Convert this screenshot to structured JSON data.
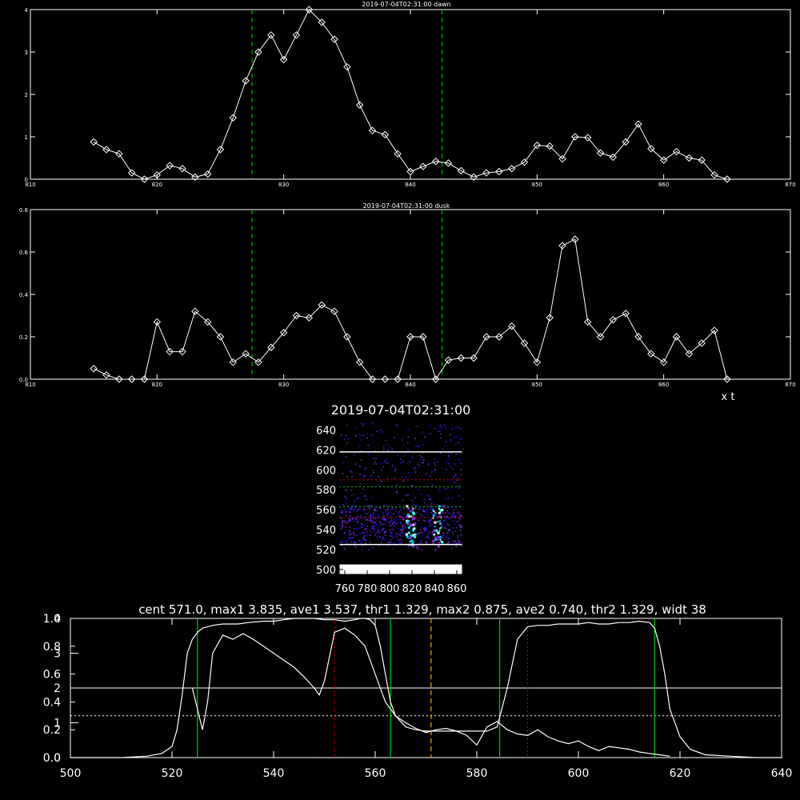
{
  "chart_data": [
    {
      "type": "line",
      "title": "2019-07-04T02:31:00 dawn",
      "xlim": [
        810,
        870
      ],
      "ylim": [
        0,
        4
      ],
      "x_ticks": [
        "810",
        "820",
        "830",
        "840",
        "850",
        "860",
        "870"
      ],
      "y_ticks": [
        "0",
        "1",
        "2",
        "3",
        "4"
      ],
      "markers": "diamond",
      "color": "#ffffff",
      "vlines": {
        "x": [
          827.5,
          842.5
        ],
        "color": "#00cc00",
        "style": "dashed"
      },
      "x": [
        815,
        816,
        817,
        818,
        819,
        820,
        821,
        822,
        823,
        824,
        825,
        826,
        827,
        828,
        829,
        830,
        831,
        832,
        833,
        834,
        835,
        836,
        837,
        838,
        839,
        840,
        841,
        842,
        843,
        844,
        845,
        846,
        847,
        848,
        849,
        850,
        851,
        852,
        853,
        854,
        855,
        856,
        857,
        858,
        859,
        860,
        861,
        862,
        863,
        864,
        865
      ],
      "y": [
        0.88,
        0.7,
        0.6,
        0.15,
        0.0,
        0.1,
        0.32,
        0.25,
        0.05,
        0.12,
        0.7,
        1.45,
        2.32,
        3.0,
        3.4,
        2.82,
        3.4,
        4.0,
        3.7,
        3.3,
        2.65,
        1.75,
        1.15,
        1.05,
        0.6,
        0.18,
        0.3,
        0.42,
        0.38,
        0.2,
        0.05,
        0.15,
        0.18,
        0.25,
        0.4,
        0.8,
        0.78,
        0.48,
        1.0,
        0.98,
        0.62,
        0.52,
        0.88,
        1.3,
        0.72,
        0.45,
        0.65,
        0.5,
        0.45,
        0.1,
        0.0
      ]
    },
    {
      "type": "line",
      "title": "2019-07-04T02:31:00 dusk",
      "xlim": [
        810,
        870
      ],
      "ylim": [
        0,
        0.8
      ],
      "x_ticks": [
        "810",
        "820",
        "830",
        "840",
        "850",
        "860",
        "870"
      ],
      "y_ticks": [
        "0.0",
        "0.2",
        "0.4",
        "0.6",
        "0.8"
      ],
      "axis_note": "x t",
      "markers": "diamond",
      "color": "#ffffff",
      "vlines": {
        "x": [
          827.5,
          842.5
        ],
        "color": "#00cc00",
        "style": "dashed"
      },
      "x": [
        815,
        816,
        817,
        818,
        819,
        820,
        821,
        822,
        823,
        824,
        825,
        826,
        827,
        828,
        829,
        830,
        831,
        832,
        833,
        834,
        835,
        836,
        837,
        838,
        839,
        840,
        841,
        842,
        843,
        844,
        845,
        846,
        847,
        848,
        849,
        850,
        851,
        852,
        853,
        854,
        855,
        856,
        857,
        858,
        859,
        860,
        861,
        862,
        863,
        864,
        865
      ],
      "y": [
        0.05,
        0.02,
        0.0,
        0.0,
        0.0,
        0.27,
        0.13,
        0.13,
        0.32,
        0.27,
        0.2,
        0.08,
        0.12,
        0.08,
        0.15,
        0.22,
        0.3,
        0.29,
        0.35,
        0.32,
        0.2,
        0.08,
        0.0,
        0.0,
        0.0,
        0.2,
        0.2,
        0.0,
        0.09,
        0.1,
        0.1,
        0.2,
        0.2,
        0.25,
        0.17,
        0.08,
        0.29,
        0.63,
        0.66,
        0.27,
        0.2,
        0.28,
        0.31,
        0.2,
        0.12,
        0.08,
        0.2,
        0.12,
        0.17,
        0.23,
        0.0
      ]
    },
    {
      "type": "heatmap",
      "title": "2019-07-04T02:31:00",
      "xlim": [
        755,
        865
      ],
      "ylim": [
        495,
        650
      ],
      "x_ticks": [
        "760",
        "780",
        "800",
        "820",
        "840",
        "860"
      ],
      "y_ticks": [
        "500",
        "520",
        "540",
        "560",
        "580",
        "600",
        "620",
        "640"
      ],
      "hlines_white": [
        525,
        618
      ],
      "hlines_dotted": [
        {
          "y": 563,
          "color": "#00cc00"
        },
        {
          "y": 583,
          "color": "#00cc00"
        },
        {
          "y": 552,
          "color": "#cc0000"
        },
        {
          "y": 590,
          "color": "#cc0000"
        }
      ],
      "bright_columns": [
        818,
        842
      ],
      "colors": [
        "#1010ff",
        "#5a2bd6",
        "#8a2be2",
        "#00c8ff",
        "#30ffd0",
        "#ffffff"
      ]
    },
    {
      "type": "line",
      "title": "cent 571.0, max1 3.835, ave1 3.537, thr1 1.329, max2 0.875, ave2 0.740, thr2 1.329, widt 38",
      "xlim": [
        500,
        640
      ],
      "ylim_left_inner": [
        0,
        1.0
      ],
      "ylim_left_outer": [
        0,
        4
      ],
      "x_ticks": [
        "500",
        "520",
        "540",
        "560",
        "580",
        "600",
        "620",
        "640"
      ],
      "y_ticks_inner": [
        "0.0",
        "0.2",
        "0.4",
        "0.6",
        "0.8",
        "1.0"
      ],
      "y_ticks_outer": [
        "0",
        "1",
        "2",
        "3",
        "4"
      ],
      "color": "#ffffff",
      "series": [
        {
          "x": [
            500,
            505,
            510,
            515,
            518,
            520,
            521,
            522,
            523,
            524,
            525,
            526,
            527,
            528,
            530,
            533,
            535,
            538,
            540,
            542,
            544,
            546,
            548,
            550,
            552,
            554,
            556,
            557,
            558,
            559,
            560,
            561,
            562,
            563,
            564,
            566,
            568,
            570,
            572,
            574,
            576,
            578,
            580,
            582,
            584,
            586,
            588,
            590,
            592,
            594,
            596,
            598,
            600,
            602,
            604,
            606,
            608,
            610,
            612,
            614,
            615,
            616,
            617,
            618,
            620,
            622,
            625,
            630,
            635,
            640
          ],
          "y": [
            0.0,
            0.0,
            0.0,
            0.01,
            0.03,
            0.08,
            0.2,
            0.45,
            0.75,
            0.85,
            0.9,
            0.93,
            0.94,
            0.95,
            0.96,
            0.96,
            0.97,
            0.98,
            0.98,
            0.99,
            1.0,
            1.0,
            1.0,
            0.99,
            0.99,
            0.98,
            0.99,
            1.0,
            1.0,
            0.99,
            0.95,
            0.8,
            0.6,
            0.4,
            0.3,
            0.22,
            0.2,
            0.19,
            0.19,
            0.19,
            0.19,
            0.19,
            0.19,
            0.19,
            0.22,
            0.5,
            0.85,
            0.94,
            0.95,
            0.95,
            0.96,
            0.96,
            0.96,
            0.97,
            0.96,
            0.96,
            0.97,
            0.97,
            0.98,
            0.97,
            0.93,
            0.8,
            0.6,
            0.35,
            0.15,
            0.06,
            0.02,
            0.01,
            0.0,
            0.0
          ]
        },
        {
          "x": [
            524,
            525,
            526,
            527,
            528,
            530,
            532,
            534,
            536,
            538,
            540,
            542,
            544,
            546,
            548,
            549,
            550,
            552,
            554,
            556,
            558,
            560,
            562,
            564,
            566,
            568,
            570,
            572,
            574,
            576,
            578,
            580,
            582,
            584,
            586,
            588,
            590,
            592,
            594,
            596,
            598,
            600,
            602,
            604,
            606,
            608,
            610,
            612,
            614,
            616,
            618
          ],
          "y": [
            0.5,
            0.35,
            0.2,
            0.4,
            0.75,
            0.88,
            0.85,
            0.89,
            0.85,
            0.8,
            0.75,
            0.7,
            0.65,
            0.58,
            0.5,
            0.45,
            0.55,
            0.9,
            0.93,
            0.88,
            0.8,
            0.6,
            0.4,
            0.3,
            0.25,
            0.21,
            0.18,
            0.2,
            0.21,
            0.19,
            0.16,
            0.09,
            0.22,
            0.26,
            0.2,
            0.17,
            0.16,
            0.2,
            0.15,
            0.12,
            0.1,
            0.12,
            0.08,
            0.05,
            0.08,
            0.07,
            0.06,
            0.04,
            0.03,
            0.02,
            0.01
          ]
        }
      ],
      "vlines": [
        {
          "x": 525,
          "color": "#00cc00",
          "style": "solid"
        },
        {
          "x": 563,
          "color": "#00cc00",
          "style": "solid"
        },
        {
          "x": 584.5,
          "color": "#00cc00",
          "style": "solid"
        },
        {
          "x": 615,
          "color": "#00cc00",
          "style": "solid"
        },
        {
          "x": 552,
          "color": "#cc0000",
          "style": "dotted"
        },
        {
          "x": 590,
          "color": "#cc0000",
          "style": "dotted"
        },
        {
          "x": 571,
          "color": "#ff9900",
          "style": "dashed"
        }
      ],
      "hlines": [
        {
          "y": 0.5,
          "color": "#ffffff",
          "style": "solid"
        },
        {
          "y": 0.3,
          "color": "#ffffff",
          "style": "dotted"
        }
      ]
    }
  ]
}
